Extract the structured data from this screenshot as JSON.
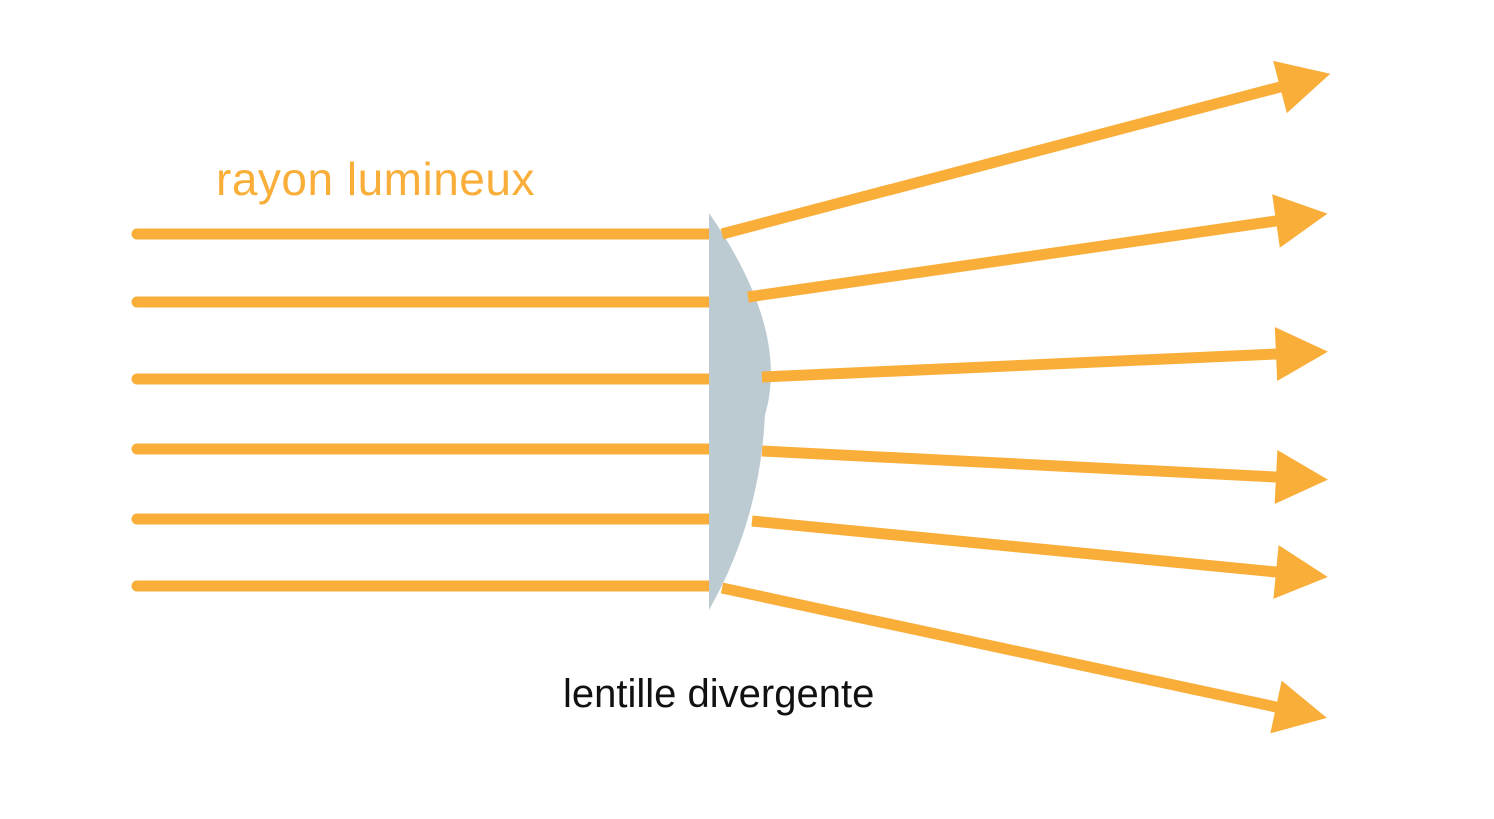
{
  "labels": {
    "ray": "rayon lumineux",
    "lens": "lentille divergente"
  },
  "colors": {
    "ray": "#F9AE3A",
    "lens": "#BCCAD2",
    "lens_label": "#111111",
    "background": "#FFFFFF"
  },
  "rays": [
    {
      "name": "ray-1"
    },
    {
      "name": "ray-2"
    },
    {
      "name": "ray-3"
    },
    {
      "name": "ray-4"
    },
    {
      "name": "ray-5"
    },
    {
      "name": "ray-6"
    }
  ]
}
